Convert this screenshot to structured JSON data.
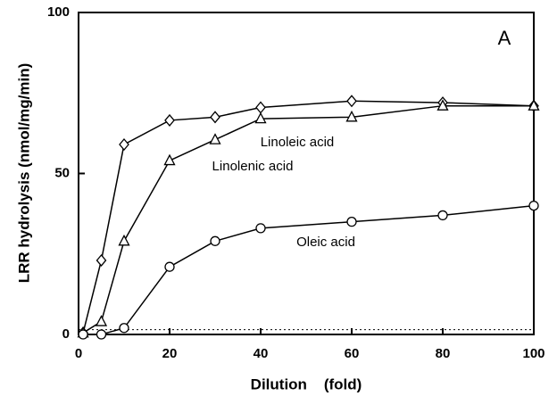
{
  "chart_data": {
    "type": "line",
    "xlabel": "Dilution    (fold)",
    "ylabel": "LRR hydrolysis (nmol/mg/min)",
    "panel_label": "A",
    "x": [
      1,
      5,
      10,
      20,
      30,
      40,
      60,
      80,
      100
    ],
    "series": [
      {
        "name": "Linolenic acid",
        "color": "#000000",
        "marker": "diamond",
        "values": [
          0.5,
          23,
          59,
          66.5,
          67.5,
          70.5,
          72.5,
          72,
          71
        ]
      },
      {
        "name": "Linoleic acid",
        "color": "#000000",
        "marker": "triangle",
        "values": [
          0.5,
          4,
          29,
          54,
          60.5,
          67,
          67.5,
          71,
          71
        ]
      },
      {
        "name": "Oleic acid",
        "color": "#000000",
        "marker": "circle",
        "values": [
          0,
          0,
          2,
          21,
          29,
          33,
          35,
          37,
          40
        ]
      }
    ],
    "reference_line": 1.5,
    "xlim": [
      0,
      100
    ],
    "xticks": [
      0,
      20,
      40,
      60,
      80,
      100
    ],
    "ylim": [
      0,
      100
    ],
    "yticks": [
      0,
      50,
      100
    ],
    "grid": false
  }
}
